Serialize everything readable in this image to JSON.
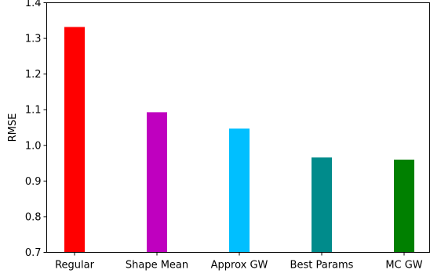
{
  "chart_data": {
    "type": "bar",
    "title": "",
    "xlabel": "",
    "ylabel": "RMSE",
    "ylim": [
      0.7,
      1.4
    ],
    "yticks": [
      "0.7",
      "0.8",
      "0.9",
      "1.0",
      "1.1",
      "1.2",
      "1.3",
      "1.4"
    ],
    "categories": [
      "Regular",
      "Shape Mean",
      "Approx GW",
      "Best Params",
      "MC GW"
    ],
    "values": [
      1.332,
      1.093,
      1.047,
      0.966,
      0.96
    ],
    "colors": [
      "#ff0000",
      "#bf00bf",
      "#00bfff",
      "#008b8b",
      "#008000"
    ],
    "grid": false,
    "legend": "none"
  }
}
